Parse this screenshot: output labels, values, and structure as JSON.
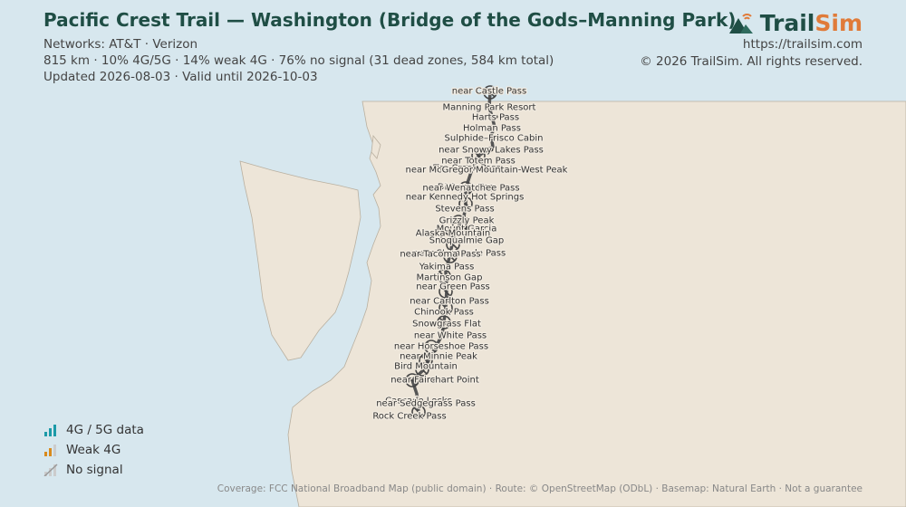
{
  "header": {
    "title": "Pacific Crest Trail — Washington (Bridge of the Gods–Manning Park)",
    "networks": "Networks: AT&T · Verizon",
    "stats": "815 km · 10% 4G/5G · 14% weak 4G · 76% no signal (31 dead zones, 584 km total)",
    "updated": "Updated 2026-08-03 · Valid until 2026-10-03"
  },
  "brand": {
    "name_a": "Trail",
    "name_b": "Sim",
    "url": "https://trailsim.com",
    "copyright": "© 2026 TrailSim. All rights reserved."
  },
  "legend": [
    "4G / 5G data",
    "Weak 4G",
    "No signal"
  ],
  "waypoints": [
    "near Castle Pass",
    "Manning Park Resort",
    "Harts Pass",
    "Holman Pass",
    "Sulphide–Frisco Cabin",
    "near Snowy Lakes Pass",
    "near Totem Pass",
    "Fire Creek Pass",
    "near McGregor Mountain-West Peak",
    "Dishpan Gap",
    "near Wenatchee Pass",
    "near Kennedy Hot Springs",
    "Stevens Pass",
    "Grizzly Peak",
    "Mount Garcia",
    "Alaska Mountain",
    "Snoqualmie Gap",
    "near Stampede Pass",
    "near Tacoma Pass",
    "Yakima Pass",
    "Martinson Gap",
    "near Green Pass",
    "near Carlton Pass",
    "Chinook Pass",
    "Snowgrass Flat",
    "near White Pass",
    "near Horseshoe Pass",
    "near Minnie Peak",
    "Bird Mountain",
    "near Fairchart Point",
    "Cascade Locks",
    "near Sedgegrass Pass",
    "Rock Creek Pass"
  ],
  "footer": "Coverage: FCC National Broadband Map (public domain) · Route: © OpenStreetMap (ODbL) · Basemap: Natural Earth · Not a guarantee"
}
